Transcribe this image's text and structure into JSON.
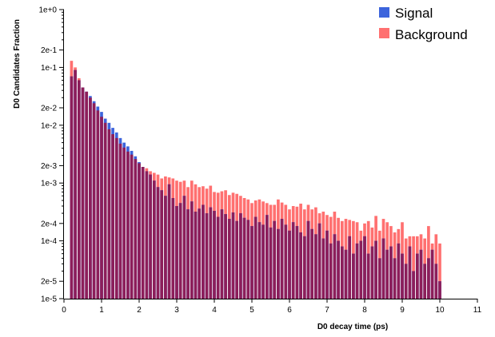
{
  "chart_data": {
    "type": "bar",
    "overlay": true,
    "xlabel": "D0 decay time (ps)",
    "ylabel": "D0 Candidates Fraction",
    "xlim": [
      0,
      11
    ],
    "ylim": [
      1e-05,
      1
    ],
    "y_scale": "log",
    "grid": false,
    "legend_position": "top-right",
    "x_ticks": [
      "0",
      "1",
      "2",
      "3",
      "4",
      "5",
      "6",
      "7",
      "8",
      "9",
      "10",
      "11"
    ],
    "y_ticks": [
      {
        "value": 1e-05,
        "label": "1e-5"
      },
      {
        "value": 2e-05,
        "label": "2e-5"
      },
      {
        "value": 0.0001,
        "label": "1e-4"
      },
      {
        "value": 0.0002,
        "label": "2e-4"
      },
      {
        "value": 0.001,
        "label": "1e-3"
      },
      {
        "value": 0.002,
        "label": "2e-3"
      },
      {
        "value": 0.01,
        "label": "1e-2"
      },
      {
        "value": 0.02,
        "label": "2e-2"
      },
      {
        "value": 0.1,
        "label": "1e-1"
      },
      {
        "value": 0.2,
        "label": "2e-1"
      },
      {
        "value": 1,
        "label": "1e+0"
      }
    ],
    "bin_width": 0.1,
    "x": [
      0.2,
      0.3,
      0.4,
      0.5,
      0.6,
      0.7,
      0.8,
      0.9,
      1.0,
      1.1,
      1.2,
      1.3,
      1.4,
      1.5,
      1.6,
      1.7,
      1.8,
      1.9,
      2.0,
      2.1,
      2.2,
      2.3,
      2.4,
      2.5,
      2.6,
      2.7,
      2.8,
      2.9,
      3.0,
      3.1,
      3.2,
      3.3,
      3.4,
      3.5,
      3.6,
      3.7,
      3.8,
      3.9,
      4.0,
      4.1,
      4.2,
      4.3,
      4.4,
      4.5,
      4.6,
      4.7,
      4.8,
      4.9,
      5.0,
      5.1,
      5.2,
      5.3,
      5.4,
      5.5,
      5.6,
      5.7,
      5.8,
      5.9,
      6.0,
      6.1,
      6.2,
      6.3,
      6.4,
      6.5,
      6.6,
      6.7,
      6.8,
      6.9,
      7.0,
      7.1,
      7.2,
      7.3,
      7.4,
      7.5,
      7.6,
      7.7,
      7.8,
      7.9,
      8.0,
      8.1,
      8.2,
      8.3,
      8.4,
      8.5,
      8.6,
      8.7,
      8.8,
      8.9,
      9.0,
      9.1,
      9.2,
      9.3,
      9.4,
      9.5,
      9.6,
      9.7,
      9.8,
      9.9,
      10.0
    ],
    "series": [
      {
        "name": "Signal",
        "color": "#3c64dc",
        "values": [
          0.07,
          0.09,
          0.06,
          0.045,
          0.038,
          0.032,
          0.026,
          0.021,
          0.017,
          0.013,
          0.011,
          0.009,
          0.0075,
          0.006,
          0.005,
          0.0043,
          0.0036,
          0.0029,
          0.0023,
          0.0019,
          0.0016,
          0.0014,
          0.0011,
          0.00085,
          0.00075,
          0.0006,
          0.00095,
          0.00055,
          0.0004,
          0.00045,
          0.0006,
          0.00035,
          0.00048,
          0.00032,
          0.00036,
          0.00042,
          0.0003,
          0.00038,
          0.00033,
          0.00026,
          0.00035,
          0.00029,
          0.00024,
          0.00031,
          0.00022,
          0.0003,
          0.00025,
          0.00023,
          0.00018,
          0.00026,
          0.00021,
          0.00019,
          0.00028,
          0.00017,
          0.00022,
          0.00016,
          0.00024,
          0.00019,
          0.00015,
          0.00021,
          0.00018,
          0.00014,
          0.00012,
          0.00022,
          0.00016,
          0.00013,
          0.0002,
          0.00011,
          0.00015,
          9e-05,
          0.00013,
          0.0001,
          8e-05,
          7e-05,
          0.00012,
          6e-05,
          9e-05,
          0.0001,
          0.00012,
          6e-05,
          8e-05,
          0.0001,
          5e-05,
          0.00011,
          7e-05,
          8e-05,
          5e-05,
          9e-05,
          6e-05,
          4e-05,
          8e-05,
          3e-05,
          6e-05,
          7e-05,
          4e-05,
          5e-05,
          7e-05,
          4e-05,
          2e-05
        ]
      },
      {
        "name": "Background",
        "color": "#ff7070",
        "values": [
          0.13,
          0.1,
          0.065,
          0.045,
          0.038,
          0.03,
          0.024,
          0.018,
          0.014,
          0.011,
          0.0085,
          0.007,
          0.006,
          0.0048,
          0.0041,
          0.0035,
          0.0031,
          0.0026,
          0.0022,
          0.0019,
          0.0018,
          0.0016,
          0.0015,
          0.0014,
          0.0012,
          0.0013,
          0.00125,
          0.0012,
          0.0011,
          0.00105,
          0.0011,
          0.00085,
          0.0011,
          0.00095,
          0.00085,
          0.00088,
          0.0008,
          0.0009,
          0.0007,
          0.00068,
          0.00072,
          0.00075,
          0.00062,
          0.00068,
          0.00065,
          0.0006,
          0.00055,
          0.00052,
          0.00045,
          0.0005,
          0.00052,
          0.00048,
          0.00045,
          0.00042,
          0.00042,
          0.00052,
          0.00046,
          0.00042,
          0.00035,
          0.0004,
          0.00039,
          0.00044,
          0.00035,
          0.00042,
          0.00035,
          0.00038,
          0.0003,
          0.00032,
          0.00028,
          0.00026,
          0.00032,
          0.00025,
          0.00022,
          0.00024,
          0.00023,
          0.00022,
          0.00021,
          0.00015,
          0.0002,
          0.00022,
          0.00017,
          0.00027,
          0.00015,
          0.00024,
          0.00021,
          0.00018,
          0.00014,
          0.00016,
          0.00021,
          0.00011,
          0.00012,
          0.00012,
          0.00012,
          0.00013,
          0.00011,
          0.00018,
          9e-05,
          0.00013,
          9e-05
        ]
      }
    ],
    "overlap_color": "#8c1e5a"
  }
}
